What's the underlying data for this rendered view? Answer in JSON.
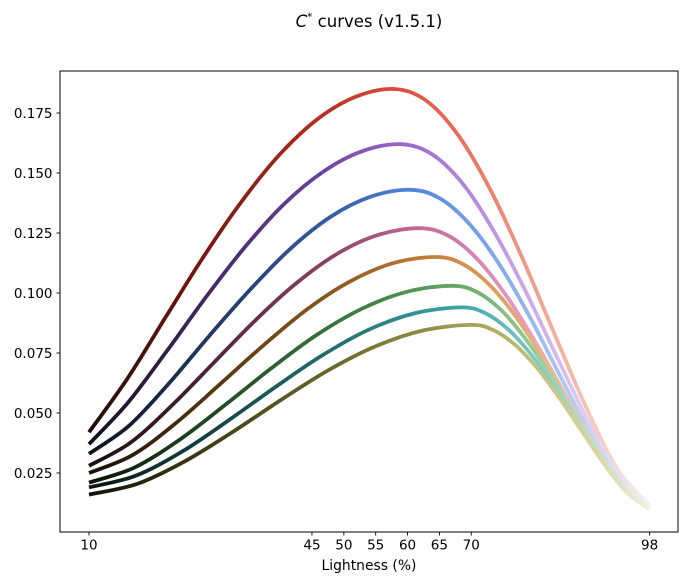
{
  "title": {
    "italic_part": "C",
    "superscript_part": "*",
    "rest_part": " curves (v1.5.1)",
    "full": "C* curves (v1.5.1)"
  },
  "colors": {
    "background": "#ffffff",
    "spine": "#000000",
    "tick": "#000000",
    "text": "#000000"
  },
  "chart_data": {
    "type": "line",
    "title": "C* curves (v1.5.1)",
    "xlabel": "Lightness (%)",
    "ylabel": "",
    "grid": false,
    "legend": "none",
    "xlim": [
      5.45,
      102.45
    ],
    "ylim": [
      0.0004,
      0.1925
    ],
    "xticks": [
      10,
      45,
      50,
      55,
      60,
      65,
      70,
      98
    ],
    "yticks": [
      0.025,
      0.05,
      0.075,
      0.1,
      0.125,
      0.15,
      0.175
    ],
    "line_width": 3.8,
    "series": [
      {
        "name": "red",
        "peak_lightness": 58,
        "peak_value": 0.185,
        "start_value": 0.042,
        "end_value": 0.0115,
        "gradient_stops": [
          {
            "at": 0,
            "color": "#1a0d0b"
          },
          {
            "at": 0.18,
            "color": "#701510"
          },
          {
            "at": 0.38,
            "color": "#aa2a1d"
          },
          {
            "at": 0.545,
            "color": "#db4a39"
          },
          {
            "at": 0.72,
            "color": "#ea8370"
          },
          {
            "at": 0.87,
            "color": "#f3bdae"
          },
          {
            "at": 1,
            "color": "#f6f1e8"
          }
        ],
        "points": [
          [
            10,
            0.042
          ],
          [
            16,
            0.0642
          ],
          [
            22,
            0.0898
          ],
          [
            28,
            0.1152
          ],
          [
            34,
            0.1383
          ],
          [
            40,
            0.1579
          ],
          [
            46,
            0.1727
          ],
          [
            52,
            0.1819
          ],
          [
            58,
            0.185
          ],
          [
            63,
            0.18
          ],
          [
            68,
            0.1656
          ],
          [
            73,
            0.143
          ],
          [
            78,
            0.1147
          ],
          [
            83,
            0.0833
          ],
          [
            88,
            0.0526
          ],
          [
            93,
            0.0264
          ],
          [
            98,
            0.0115
          ]
        ]
      },
      {
        "name": "purple",
        "peak_lightness": 59,
        "peak_value": 0.162,
        "start_value": 0.037,
        "end_value": 0.0112,
        "gradient_stops": [
          {
            "at": 0,
            "color": "#150f1a"
          },
          {
            "at": 0.18,
            "color": "#3a2556"
          },
          {
            "at": 0.4,
            "color": "#68419c"
          },
          {
            "at": 0.557,
            "color": "#9e65cb"
          },
          {
            "at": 0.72,
            "color": "#bd94e0"
          },
          {
            "at": 0.87,
            "color": "#ddc5f0"
          },
          {
            "at": 1,
            "color": "#f3eff6"
          }
        ],
        "points": [
          [
            10,
            0.037
          ],
          [
            16.1,
            0.0543
          ],
          [
            22.3,
            0.0761
          ],
          [
            28.4,
            0.0984
          ],
          [
            34.5,
            0.1192
          ],
          [
            40.6,
            0.137
          ],
          [
            46.8,
            0.1506
          ],
          [
            52.9,
            0.1591
          ],
          [
            59,
            0.162
          ],
          [
            63.9,
            0.1577
          ],
          [
            68.8,
            0.1451
          ],
          [
            73.6,
            0.1255
          ],
          [
            78.5,
            0.1009
          ],
          [
            83.4,
            0.0736
          ],
          [
            88.3,
            0.0469
          ],
          [
            93.1,
            0.0242
          ],
          [
            98,
            0.0112
          ]
        ]
      },
      {
        "name": "blue",
        "peak_lightness": 60.5,
        "peak_value": 0.143,
        "start_value": 0.033,
        "end_value": 0.011,
        "gradient_stops": [
          {
            "at": 0,
            "color": "#0e1119"
          },
          {
            "at": 0.18,
            "color": "#1f3158"
          },
          {
            "at": 0.42,
            "color": "#35599f"
          },
          {
            "at": 0.574,
            "color": "#4f83da"
          },
          {
            "at": 0.73,
            "color": "#82aae8"
          },
          {
            "at": 0.88,
            "color": "#b8d0f2"
          },
          {
            "at": 1,
            "color": "#eef2f6"
          }
        ],
        "points": [
          [
            10,
            0.033
          ],
          [
            16.3,
            0.0447
          ],
          [
            22.6,
            0.0625
          ],
          [
            28.9,
            0.0822
          ],
          [
            35.3,
            0.1014
          ],
          [
            41.6,
            0.1184
          ],
          [
            47.9,
            0.1317
          ],
          [
            54.2,
            0.1401
          ],
          [
            60.5,
            0.143
          ],
          [
            65.2,
            0.1392
          ],
          [
            69.9,
            0.1282
          ],
          [
            74.6,
            0.1111
          ],
          [
            79.3,
            0.0895
          ],
          [
            83.9,
            0.0657
          ],
          [
            88.6,
            0.0422
          ],
          [
            93.3,
            0.0224
          ],
          [
            98,
            0.011
          ]
        ]
      },
      {
        "name": "pink",
        "peak_lightness": 62,
        "peak_value": 0.127,
        "start_value": 0.028,
        "end_value": 0.0108,
        "gradient_stops": [
          {
            "at": 0,
            "color": "#180e12"
          },
          {
            "at": 0.18,
            "color": "#441f30"
          },
          {
            "at": 0.43,
            "color": "#8a4465"
          },
          {
            "at": 0.59,
            "color": "#c4689c"
          },
          {
            "at": 0.74,
            "color": "#e091bb"
          },
          {
            "at": 0.88,
            "color": "#f0bcd8"
          },
          {
            "at": 1,
            "color": "#f6f0f3"
          }
        ],
        "points": [
          [
            10,
            0.028
          ],
          [
            16.5,
            0.0376
          ],
          [
            23,
            0.0531
          ],
          [
            29.5,
            0.0707
          ],
          [
            36,
            0.0883
          ],
          [
            42.5,
            0.104
          ],
          [
            49,
            0.1164
          ],
          [
            55.5,
            0.1243
          ],
          [
            62,
            0.127
          ],
          [
            66.5,
            0.1237
          ],
          [
            71,
            0.114
          ],
          [
            75.5,
            0.0989
          ],
          [
            80,
            0.0799
          ],
          [
            84.5,
            0.0589
          ],
          [
            89,
            0.0383
          ],
          [
            93.5,
            0.0208
          ],
          [
            98,
            0.0108
          ]
        ]
      },
      {
        "name": "orange",
        "peak_lightness": 64.5,
        "peak_value": 0.115,
        "start_value": 0.025,
        "end_value": 0.0106,
        "gradient_stops": [
          {
            "at": 0,
            "color": "#161005"
          },
          {
            "at": 0.18,
            "color": "#4b300d"
          },
          {
            "at": 0.44,
            "color": "#8d5a20"
          },
          {
            "at": 0.62,
            "color": "#c8813c"
          },
          {
            "at": 0.76,
            "color": "#e0a86c"
          },
          {
            "at": 0.89,
            "color": "#eecda2"
          },
          {
            "at": 1,
            "color": "#f6f1e5"
          }
        ],
        "points": [
          [
            10,
            0.025
          ],
          [
            16.8,
            0.0324
          ],
          [
            23.6,
            0.0457
          ],
          [
            30.4,
            0.0616
          ],
          [
            37.3,
            0.078
          ],
          [
            44.1,
            0.0929
          ],
          [
            50.9,
            0.1047
          ],
          [
            57.7,
            0.1124
          ],
          [
            64.5,
            0.115
          ],
          [
            68.7,
            0.112
          ],
          [
            72.9,
            0.1033
          ],
          [
            77.1,
            0.0898
          ],
          [
            81.3,
            0.0727
          ],
          [
            85.4,
            0.0538
          ],
          [
            89.6,
            0.0353
          ],
          [
            93.8,
            0.0196
          ],
          [
            98,
            0.0106
          ]
        ]
      },
      {
        "name": "green",
        "peak_lightness": 67,
        "peak_value": 0.103,
        "start_value": 0.021,
        "end_value": 0.0104,
        "gradient_stops": [
          {
            "at": 0,
            "color": "#0d1308"
          },
          {
            "at": 0.18,
            "color": "#1e401e"
          },
          {
            "at": 0.45,
            "color": "#3c7540"
          },
          {
            "at": 0.648,
            "color": "#61a763"
          },
          {
            "at": 0.78,
            "color": "#94c791"
          },
          {
            "at": 0.9,
            "color": "#c2dfba"
          },
          {
            "at": 1,
            "color": "#f0f3e9"
          }
        ],
        "points": [
          [
            10,
            0.021
          ],
          [
            17.1,
            0.0272
          ],
          [
            24.3,
            0.039
          ],
          [
            31.4,
            0.0534
          ],
          [
            38.5,
            0.0684
          ],
          [
            45.6,
            0.0823
          ],
          [
            52.8,
            0.0934
          ],
          [
            59.9,
            0.1005
          ],
          [
            67,
            0.103
          ],
          [
            70.9,
            0.1004
          ],
          [
            74.8,
            0.0926
          ],
          [
            78.6,
            0.0806
          ],
          [
            82.5,
            0.0655
          ],
          [
            86.4,
            0.0487
          ],
          [
            90.3,
            0.0323
          ],
          [
            94.1,
            0.0184
          ],
          [
            98,
            0.0104
          ]
        ]
      },
      {
        "name": "teal",
        "peak_lightness": 68.5,
        "peak_value": 0.094,
        "start_value": 0.019,
        "end_value": 0.0102,
        "gradient_stops": [
          {
            "at": 0,
            "color": "#091313"
          },
          {
            "at": 0.18,
            "color": "#113b3d"
          },
          {
            "at": 0.46,
            "color": "#257472"
          },
          {
            "at": 0.665,
            "color": "#3ea6a5"
          },
          {
            "at": 0.79,
            "color": "#7cc8c2"
          },
          {
            "at": 0.9,
            "color": "#aedfd6"
          },
          {
            "at": 1,
            "color": "#ecf3ef"
          }
        ],
        "points": [
          [
            10,
            0.019
          ],
          [
            17.3,
            0.0238
          ],
          [
            24.6,
            0.0339
          ],
          [
            31.9,
            0.0469
          ],
          [
            39.3,
            0.0609
          ],
          [
            46.6,
            0.074
          ],
          [
            53.9,
            0.0847
          ],
          [
            61.2,
            0.0916
          ],
          [
            68.5,
            0.094
          ],
          [
            72.2,
            0.0916
          ],
          [
            75.9,
            0.0846
          ],
          [
            79.6,
            0.0737
          ],
          [
            83.3,
            0.06
          ],
          [
            86.9,
            0.0449
          ],
          [
            90.6,
            0.03
          ],
          [
            94.3,
            0.0174
          ],
          [
            98,
            0.0102
          ]
        ]
      },
      {
        "name": "olive",
        "peak_lightness": 70,
        "peak_value": 0.0867,
        "start_value": 0.016,
        "end_value": 0.01,
        "gradient_stops": [
          {
            "at": 0,
            "color": "#111105"
          },
          {
            "at": 0.18,
            "color": "#393711"
          },
          {
            "at": 0.46,
            "color": "#6f6d2e"
          },
          {
            "at": 0.682,
            "color": "#a4a253"
          },
          {
            "at": 0.8,
            "color": "#c4c17c"
          },
          {
            "at": 0.91,
            "color": "#dbd6a4"
          },
          {
            "at": 1,
            "color": "#f3f1e1"
          }
        ],
        "points": [
          [
            10,
            0.016
          ],
          [
            17.5,
            0.0204
          ],
          [
            25,
            0.0298
          ],
          [
            32.5,
            0.042
          ],
          [
            40,
            0.0552
          ],
          [
            47.5,
            0.0677
          ],
          [
            55,
            0.0778
          ],
          [
            62.5,
            0.0844
          ],
          [
            70,
            0.0867
          ],
          [
            73.5,
            0.0845
          ],
          [
            77,
            0.0781
          ],
          [
            80.5,
            0.0682
          ],
          [
            84,
            0.0556
          ],
          [
            87.5,
            0.0418
          ],
          [
            91,
            0.0282
          ],
          [
            94.5,
            0.0166
          ],
          [
            98,
            0.01
          ]
        ]
      }
    ]
  }
}
